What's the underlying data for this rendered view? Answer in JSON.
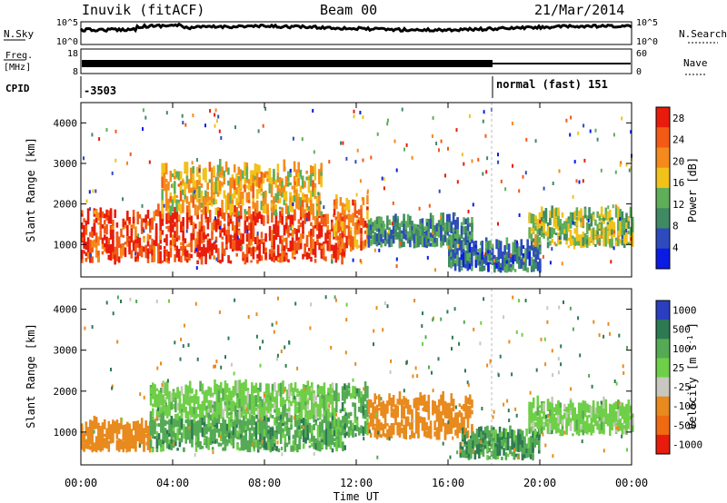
{
  "header": {
    "station": "Inuvik (fitACF)",
    "beam": "Beam 00",
    "date": "21/Mar/2014"
  },
  "panels": {
    "nsky_label": "N.Sky",
    "nsearch_label": "N.Search",
    "nsky_ticks": [
      "10^5",
      "10^0"
    ],
    "nsearch_ticks": [
      "10^5",
      "10^0"
    ],
    "freq_label": [
      "Freq.",
      "[MHz]"
    ],
    "freq_ticks": [
      "18",
      "8"
    ],
    "nave_label": "Nave",
    "nave_ticks": [
      "60",
      "0"
    ],
    "cpid_label": "CPID",
    "cpid_values": [
      "-3503",
      "normal (fast) 151"
    ]
  },
  "colors": {
    "power_scale": [
      "#0a1be6",
      "#2e4bbd",
      "#3f8a63",
      "#5fae5a",
      "#f1c21a",
      "#f58a1c",
      "#f25a16",
      "#e81c0c"
    ],
    "velocity_scale": [
      "#2a3fbf",
      "#2d7a52",
      "#55aa55",
      "#6fcf48",
      "#c8c8c0",
      "#e88a1e",
      "#f06a12",
      "#e81c0c"
    ]
  },
  "chart_data": [
    {
      "type": "heatmap",
      "title": "",
      "xlabel": "Time UT",
      "ylabel": "Slant Range [km]",
      "x_ticks": [
        "00:00",
        "04:00",
        "08:00",
        "12:00",
        "16:00",
        "20:00",
        "00:00"
      ],
      "xlim_hours": [
        0,
        24
      ],
      "y_ticks": [
        1000,
        2000,
        3000,
        4000
      ],
      "ylim": [
        200,
        4500
      ],
      "colorbar_label": "Power [dB]",
      "colorbar_ticks": [
        4,
        8,
        12,
        16,
        20,
        24,
        28
      ],
      "colorbar_range": [
        0,
        30
      ],
      "echo_bands": [
        {
          "start_h": 0.0,
          "end_h": 11.5,
          "range_lo": 500,
          "range_hi": 1700,
          "value": 26
        },
        {
          "start_h": 3.5,
          "end_h": 10.5,
          "range_lo": 1700,
          "range_hi": 2800,
          "value": 18
        },
        {
          "start_h": 11.0,
          "end_h": 12.5,
          "range_lo": 800,
          "range_hi": 2000,
          "value": 22
        },
        {
          "start_h": 12.5,
          "end_h": 17.0,
          "range_lo": 900,
          "range_hi": 1500,
          "value": 10
        },
        {
          "start_h": 16.0,
          "end_h": 20.0,
          "range_lo": 300,
          "range_hi": 900,
          "value": 8
        },
        {
          "start_h": 19.5,
          "end_h": 24.0,
          "range_lo": 900,
          "range_hi": 1700,
          "value": 14
        }
      ]
    },
    {
      "type": "heatmap",
      "title": "",
      "xlabel": "Time UT",
      "ylabel": "Slant Range [km]",
      "x_ticks": [
        "00:00",
        "04:00",
        "08:00",
        "12:00",
        "16:00",
        "20:00",
        "00:00"
      ],
      "xlim_hours": [
        0,
        24
      ],
      "y_ticks": [
        1000,
        2000,
        3000,
        4000
      ],
      "ylim": [
        200,
        4500
      ],
      "colorbar_label": "Velocity [m s^-1]",
      "colorbar_ticks": [
        1000,
        500,
        100,
        25,
        -25,
        -100,
        -500,
        -1000
      ],
      "echo_bands": [
        {
          "start_h": 0.0,
          "end_h": 3.0,
          "range_lo": 500,
          "range_hi": 1100,
          "value": -300
        },
        {
          "start_h": 3.0,
          "end_h": 11.5,
          "range_lo": 500,
          "range_hi": 1300,
          "value": 60
        },
        {
          "start_h": 3.0,
          "end_h": 11.0,
          "range_lo": 1300,
          "range_hi": 2000,
          "value": 0
        },
        {
          "start_h": 11.0,
          "end_h": 12.5,
          "range_lo": 800,
          "range_hi": 2000,
          "value": 60
        },
        {
          "start_h": 12.5,
          "end_h": 17.0,
          "range_lo": 800,
          "range_hi": 1700,
          "value": -300
        },
        {
          "start_h": 16.5,
          "end_h": 20.0,
          "range_lo": 300,
          "range_hi": 900,
          "value": 80
        },
        {
          "start_h": 19.5,
          "end_h": 24.0,
          "range_lo": 900,
          "range_hi": 1600,
          "value": 0
        }
      ]
    }
  ]
}
